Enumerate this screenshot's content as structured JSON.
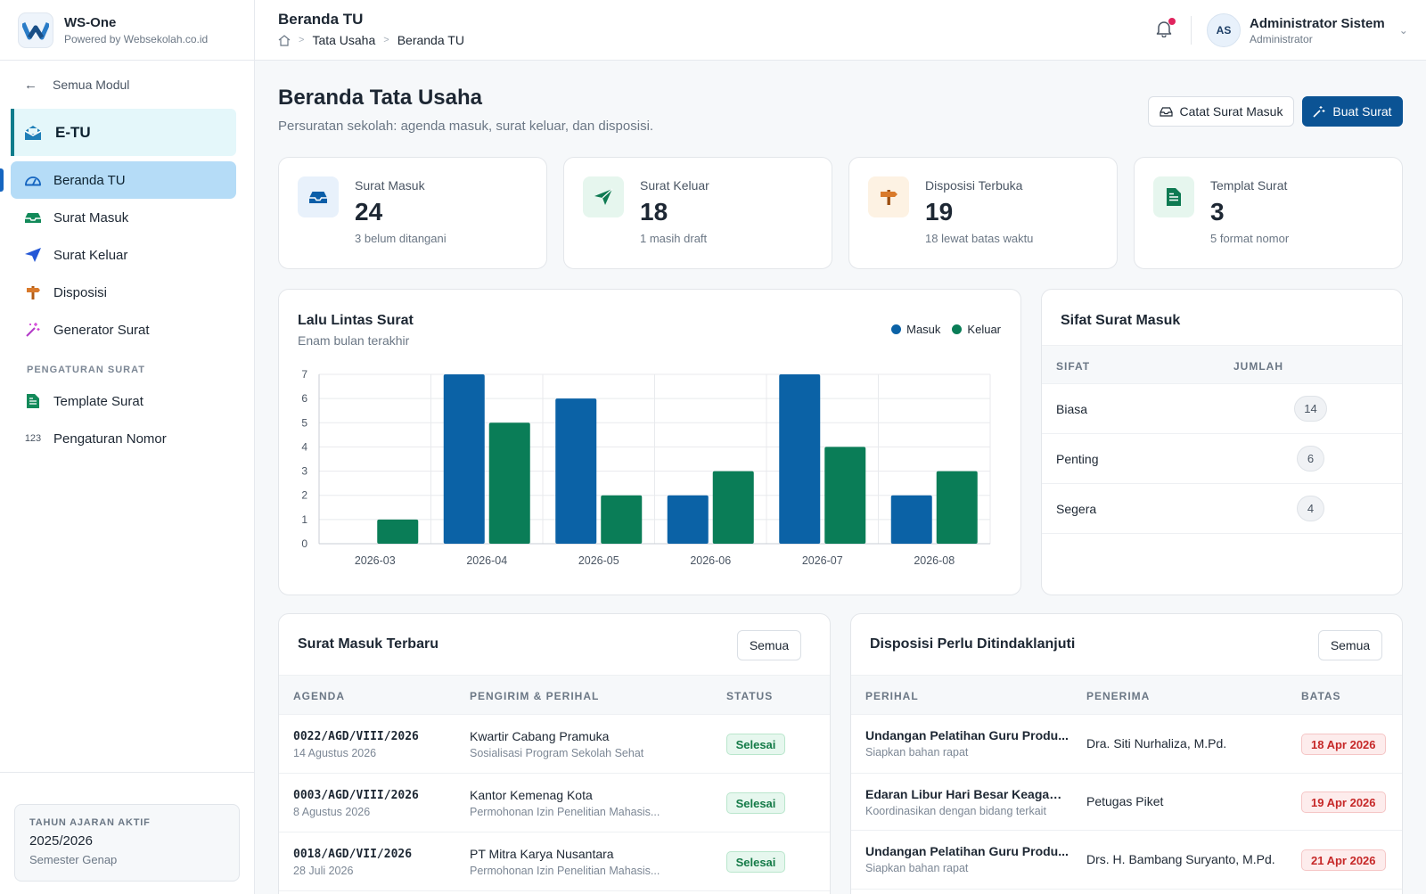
{
  "brand": {
    "name": "WS-One",
    "sub": "Powered by Websekolah.co.id"
  },
  "sidebar": {
    "back_label": "Semua Modul",
    "module_label": "E-TU",
    "items": [
      {
        "label": "Beranda TU",
        "icon": "dashboard-icon",
        "active": true
      },
      {
        "label": "Surat Masuk",
        "icon": "inbox-icon"
      },
      {
        "label": "Surat Keluar",
        "icon": "send-icon"
      },
      {
        "label": "Disposisi",
        "icon": "signpost-icon"
      },
      {
        "label": "Generator Surat",
        "icon": "magic-wand-icon"
      }
    ],
    "section_label": "PENGATURAN SURAT",
    "settings_items": [
      {
        "label": "Template Surat",
        "icon": "document-icon"
      },
      {
        "label": "Pengaturan Nomor",
        "icon": "123"
      }
    ],
    "year_card": {
      "label": "TAHUN AJARAN AKTIF",
      "value": "2025/2026",
      "sub": "Semester Genap"
    }
  },
  "topbar": {
    "title": "Beranda TU",
    "breadcrumb": [
      "Tata Usaha",
      "Beranda TU"
    ],
    "user": {
      "initials": "AS",
      "name": "Administrator Sistem",
      "role": "Administrator"
    }
  },
  "page": {
    "title": "Beranda Tata Usaha",
    "subtitle": "Persuratan sekolah: agenda masuk, surat keluar, dan disposisi.",
    "btn_catat": "Catat Surat Masuk",
    "btn_buat": "Buat Surat"
  },
  "stats": [
    {
      "label": "Surat Masuk",
      "value": "24",
      "note": "3 belum ditangani",
      "icon": "inbox-icon",
      "color": "#0b5ea8",
      "bg": "#e8f1fb"
    },
    {
      "label": "Surat Keluar",
      "value": "18",
      "note": "1 masih draft",
      "icon": "send-icon",
      "color": "#0e7a52",
      "bg": "#e6f6ee"
    },
    {
      "label": "Disposisi Terbuka",
      "value": "19",
      "note": "18 lewat batas waktu",
      "icon": "signpost-icon",
      "color": "#b35c14",
      "bg": "#fdf2e3"
    },
    {
      "label": "Templat Surat",
      "value": "3",
      "note": "5 format nomor",
      "icon": "document-icon",
      "color": "#0e7a52",
      "bg": "#e6f6ee"
    }
  ],
  "chart": {
    "title": "Lalu Lintas Surat",
    "subtitle": "Enam bulan terakhir"
  },
  "chart_data": {
    "type": "bar",
    "categories": [
      "2026-03",
      "2026-04",
      "2026-05",
      "2026-06",
      "2026-07",
      "2026-08"
    ],
    "series": [
      {
        "name": "Masuk",
        "values": [
          0,
          7,
          6,
          2,
          7,
          2
        ],
        "color": "#0b62a6"
      },
      {
        "name": "Keluar",
        "values": [
          1,
          5,
          2,
          3,
          4,
          3
        ],
        "color": "#0a7d57"
      }
    ],
    "ylim": [
      0,
      7
    ],
    "yticks": [
      0,
      1,
      2,
      3,
      4,
      5,
      6,
      7
    ],
    "grid": true,
    "legend": "top-right"
  },
  "sifat": {
    "title": "Sifat Surat Masuk",
    "col_sifat": "SIFAT",
    "col_jumlah": "JUMLAH",
    "rows": [
      {
        "label": "Biasa",
        "count": "14"
      },
      {
        "label": "Penting",
        "count": "6"
      },
      {
        "label": "Segera",
        "count": "4"
      }
    ]
  },
  "surat_masuk": {
    "title": "Surat Masuk Terbaru",
    "semua": "Semua",
    "headers": [
      "AGENDA",
      "PENGIRIM & PERIHAL",
      "STATUS"
    ],
    "rows": [
      {
        "agenda": "0022/AGD/VIII/2026",
        "date": "14 Agustus 2026",
        "sender": "Kwartir Cabang Pramuka",
        "subject": "Sosialisasi Program Sekolah Sehat",
        "status": "Selesai"
      },
      {
        "agenda": "0003/AGD/VIII/2026",
        "date": "8 Agustus 2026",
        "sender": "Kantor Kemenag Kota",
        "subject": "Permohonan Izin Penelitian Mahasis...",
        "status": "Selesai"
      },
      {
        "agenda": "0018/AGD/VII/2026",
        "date": "28 Juli 2026",
        "sender": "PT Mitra Karya Nusantara",
        "subject": "Permohonan Izin Penelitian Mahasis...",
        "status": "Selesai"
      }
    ]
  },
  "disposisi": {
    "title": "Disposisi Perlu Ditindaklanjuti",
    "semua": "Semua",
    "headers": [
      "PERIHAL",
      "PENERIMA",
      "BATAS"
    ],
    "rows": [
      {
        "perihal": "Undangan Pelatihan Guru Produ...",
        "note": "Siapkan bahan rapat",
        "penerima": "Dra. Siti Nurhaliza, M.Pd.",
        "batas": "18 Apr 2026"
      },
      {
        "perihal": "Edaran Libur Hari Besar Keagam...",
        "note": "Koordinasikan dengan bidang terkait",
        "penerima": "Petugas Piket",
        "batas": "19 Apr 2026"
      },
      {
        "perihal": "Undangan Pelatihan Guru Produ...",
        "note": "Siapkan bahan rapat",
        "penerima": "Drs. H. Bambang Suryanto, M.Pd.",
        "batas": "21 Apr 2026"
      }
    ]
  }
}
